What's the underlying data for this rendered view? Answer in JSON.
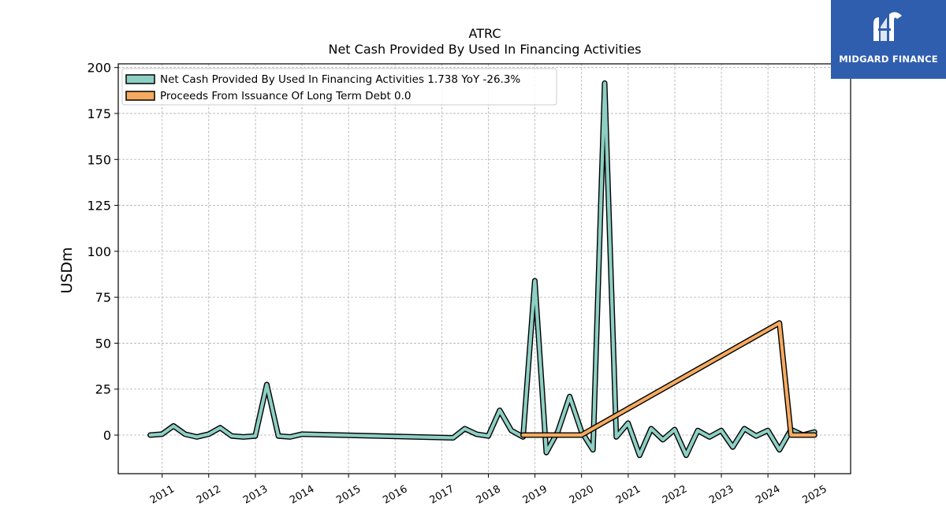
{
  "chart_data": {
    "type": "line",
    "title": "ATRC",
    "subtitle": "Net Cash Provided By Used In Financing Activities",
    "ylabel": "USDm",
    "xlabel": "",
    "ylim": [
      -21,
      202
    ],
    "xlim": [
      "2010-01-22",
      "2025-10-10"
    ],
    "yticks": [
      0,
      25,
      50,
      75,
      100,
      125,
      150,
      175,
      200
    ],
    "xticks": [
      "2011",
      "2012",
      "2013",
      "2014",
      "2015",
      "2016",
      "2017",
      "2018",
      "2019",
      "2020",
      "2021",
      "2022",
      "2023",
      "2024",
      "2025"
    ],
    "grid": true,
    "legend": "top-left",
    "series": [
      {
        "name": "Net Cash Provided By Used In Financing Activities",
        "legend_label": "Net Cash Provided By Used In Financing Activities  1.738 YoY -26.3%",
        "color": "#8ecfc4",
        "points": [
          [
            "2010-09-30",
            0.0
          ],
          [
            "2010-12-31",
            0.5
          ],
          [
            "2011-03-31",
            5.0
          ],
          [
            "2011-06-30",
            0.5
          ],
          [
            "2011-09-30",
            -1.0
          ],
          [
            "2011-12-31",
            0.5
          ],
          [
            "2012-03-31",
            4.0
          ],
          [
            "2012-06-30",
            -0.5
          ],
          [
            "2012-09-30",
            -1.0
          ],
          [
            "2012-12-31",
            -0.5
          ],
          [
            "2013-03-31",
            27.5
          ],
          [
            "2013-06-30",
            -0.5
          ],
          [
            "2013-09-30",
            -1.0
          ],
          [
            "2013-12-31",
            0.5
          ],
          [
            "2017-03-31",
            -1.5
          ],
          [
            "2017-06-30",
            3.5
          ],
          [
            "2017-09-30",
            0.5
          ],
          [
            "2017-12-31",
            -0.5
          ],
          [
            "2018-03-31",
            13.5
          ],
          [
            "2018-06-30",
            2.5
          ],
          [
            "2018-09-30",
            -1.0
          ],
          [
            "2018-12-31",
            84.0
          ],
          [
            "2019-03-31",
            -9.5
          ],
          [
            "2019-06-30",
            2.0
          ],
          [
            "2019-09-30",
            21.0
          ],
          [
            "2019-12-31",
            2.0
          ],
          [
            "2020-03-31",
            -8.0
          ],
          [
            "2020-06-30",
            191.5
          ],
          [
            "2020-09-30",
            -1.0
          ],
          [
            "2020-12-31",
            6.5
          ],
          [
            "2021-03-31",
            -11.0
          ],
          [
            "2021-06-30",
            3.5
          ],
          [
            "2021-09-30",
            -2.5
          ],
          [
            "2021-12-31",
            3.0
          ],
          [
            "2022-03-31",
            -11.0
          ],
          [
            "2022-06-30",
            2.5
          ],
          [
            "2022-09-30",
            -1.0
          ],
          [
            "2022-12-31",
            2.5
          ],
          [
            "2023-03-31",
            -6.5
          ],
          [
            "2023-06-30",
            3.5
          ],
          [
            "2023-09-30",
            -0.5
          ],
          [
            "2023-12-31",
            2.5
          ],
          [
            "2024-03-31",
            -8.0
          ],
          [
            "2024-06-30",
            3.0
          ],
          [
            "2024-09-30",
            0.0
          ],
          [
            "2024-12-31",
            1.7
          ]
        ]
      },
      {
        "name": "Proceeds From Issuance Of Long Term Debt",
        "legend_label": "Proceeds From Issuance Of Long Term Debt  0.0",
        "color": "#f5aa60",
        "points": [
          [
            "2018-09-30",
            0.0
          ],
          [
            "2019-12-31",
            0.0
          ],
          [
            "2024-03-31",
            61.0
          ],
          [
            "2024-06-30",
            0.0
          ],
          [
            "2024-12-31",
            0.0
          ]
        ]
      }
    ]
  },
  "logo": {
    "text": "MIDGARD FINANCE",
    "background": "#2f5eae"
  }
}
